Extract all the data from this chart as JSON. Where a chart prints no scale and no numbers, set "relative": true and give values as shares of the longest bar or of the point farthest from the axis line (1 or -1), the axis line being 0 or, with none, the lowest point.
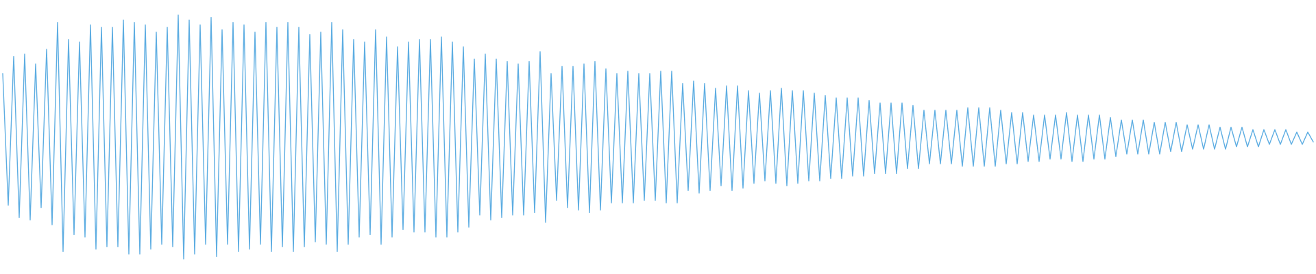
{
  "chart_data": {
    "type": "line",
    "relative": true,
    "categories": [
      null,
      null,
      null,
      null,
      null,
      null,
      null,
      null,
      null,
      null,
      null,
      null,
      null,
      null,
      null,
      null,
      null,
      null,
      null,
      null,
      null,
      null,
      null,
      null,
      null,
      null,
      null,
      null,
      null,
      null,
      null,
      null,
      null,
      null,
      null,
      null,
      null,
      null,
      null,
      null,
      null,
      null,
      null,
      null,
      null,
      null,
      null,
      null,
      null,
      null,
      null,
      null,
      null,
      null,
      null,
      null,
      null,
      null,
      null,
      null,
      null,
      null,
      null,
      null,
      null,
      null,
      null,
      null,
      null,
      null,
      null,
      null,
      null,
      null,
      null,
      null,
      null,
      null,
      null,
      null,
      null,
      null,
      null,
      null,
      null,
      null,
      null,
      null,
      null,
      null,
      null,
      null,
      null,
      null,
      null,
      null,
      null,
      null,
      null,
      null,
      null,
      null,
      null,
      null,
      null,
      null,
      null,
      null,
      null,
      null,
      null,
      null,
      null,
      null,
      null,
      null,
      null,
      null,
      null,
      null,
      null,
      null,
      null,
      null,
      null,
      null,
      null,
      null,
      null,
      null,
      null,
      null,
      null,
      null,
      null,
      null,
      null,
      null,
      null,
      null,
      null,
      null,
      null,
      null,
      null,
      null,
      null,
      null,
      null,
      null,
      null,
      null,
      null,
      null,
      null,
      null,
      null,
      null,
      null,
      null,
      null,
      null,
      null,
      null,
      null,
      null,
      null,
      null,
      null,
      null,
      null,
      null,
      null,
      null,
      null,
      null,
      null,
      null,
      null,
      null,
      null,
      null,
      null,
      null,
      null,
      null,
      null,
      null,
      null,
      null,
      null,
      null,
      null,
      null,
      null,
      null,
      null,
      null,
      null,
      null,
      null,
      null,
      null,
      null,
      null,
      null,
      null,
      null,
      null,
      null,
      null,
      null,
      null,
      null,
      null,
      null,
      null,
      null,
      null,
      null,
      null,
      null,
      null,
      null,
      null,
      null,
      null,
      null,
      null,
      null,
      null,
      null,
      null,
      null,
      null,
      null,
      null,
      null,
      null,
      null
    ],
    "series": [
      {
        "color": "#5dade2",
        "values": [
          0.76,
          0.22,
          0.83,
          0.17,
          0.84,
          0.16,
          0.8,
          0.21,
          0.86,
          0.14,
          0.97,
          0.03,
          0.9,
          0.1,
          0.89,
          0.09,
          0.96,
          0.04,
          0.95,
          0.05,
          0.95,
          0.05,
          0.98,
          0.02,
          0.97,
          0.02,
          0.96,
          0.04,
          0.93,
          0.06,
          0.95,
          0.05,
          1.0,
          0.0,
          0.98,
          0.02,
          0.96,
          0.06,
          0.99,
          0.01,
          0.94,
          0.06,
          0.97,
          0.03,
          0.96,
          0.04,
          0.93,
          0.06,
          0.97,
          0.03,
          0.95,
          0.05,
          0.97,
          0.03,
          0.95,
          0.05,
          0.92,
          0.07,
          0.93,
          0.06,
          0.97,
          0.03,
          0.94,
          0.06,
          0.9,
          0.09,
          0.89,
          0.1,
          0.94,
          0.06,
          0.91,
          0.09,
          0.87,
          0.12,
          0.89,
          0.11,
          0.9,
          0.11,
          0.9,
          0.09,
          0.91,
          0.09,
          0.89,
          0.11,
          0.87,
          0.13,
          0.82,
          0.18,
          0.84,
          0.16,
          0.82,
          0.17,
          0.81,
          0.18,
          0.8,
          0.18,
          0.81,
          0.19,
          0.85,
          0.15,
          0.76,
          0.24,
          0.79,
          0.21,
          0.79,
          0.2,
          0.8,
          0.19,
          0.81,
          0.2,
          0.78,
          0.23,
          0.76,
          0.23,
          0.77,
          0.23,
          0.76,
          0.24,
          0.76,
          0.24,
          0.77,
          0.23,
          0.77,
          0.23,
          0.72,
          0.28,
          0.73,
          0.27,
          0.72,
          0.28,
          0.7,
          0.3,
          0.71,
          0.28,
          0.71,
          0.29,
          0.69,
          0.31,
          0.68,
          0.32,
          0.69,
          0.31,
          0.7,
          0.3,
          0.69,
          0.31,
          0.69,
          0.32,
          0.68,
          0.32,
          0.67,
          0.33,
          0.66,
          0.33,
          0.66,
          0.34,
          0.66,
          0.34,
          0.65,
          0.35,
          0.64,
          0.35,
          0.64,
          0.35,
          0.64,
          0.37,
          0.63,
          0.37,
          0.61,
          0.39,
          0.61,
          0.39,
          0.61,
          0.39,
          0.61,
          0.38,
          0.62,
          0.38,
          0.62,
          0.38,
          0.62,
          0.38,
          0.61,
          0.39,
          0.6,
          0.39,
          0.6,
          0.4,
          0.59,
          0.4,
          0.59,
          0.41,
          0.59,
          0.41,
          0.6,
          0.4,
          0.59,
          0.4,
          0.59,
          0.41,
          0.59,
          0.41,
          0.58,
          0.42,
          0.57,
          0.43,
          0.57,
          0.43,
          0.57,
          0.43,
          0.56,
          0.43,
          0.56,
          0.44,
          0.56,
          0.44,
          0.55,
          0.45,
          0.55,
          0.45,
          0.55,
          0.45,
          0.54,
          0.45,
          0.54,
          0.46,
          0.54,
          0.46,
          0.53,
          0.46,
          0.53,
          0.47,
          0.53,
          0.47,
          0.53,
          0.47,
          0.52,
          0.47,
          0.52,
          0.48
        ]
      }
    ]
  }
}
